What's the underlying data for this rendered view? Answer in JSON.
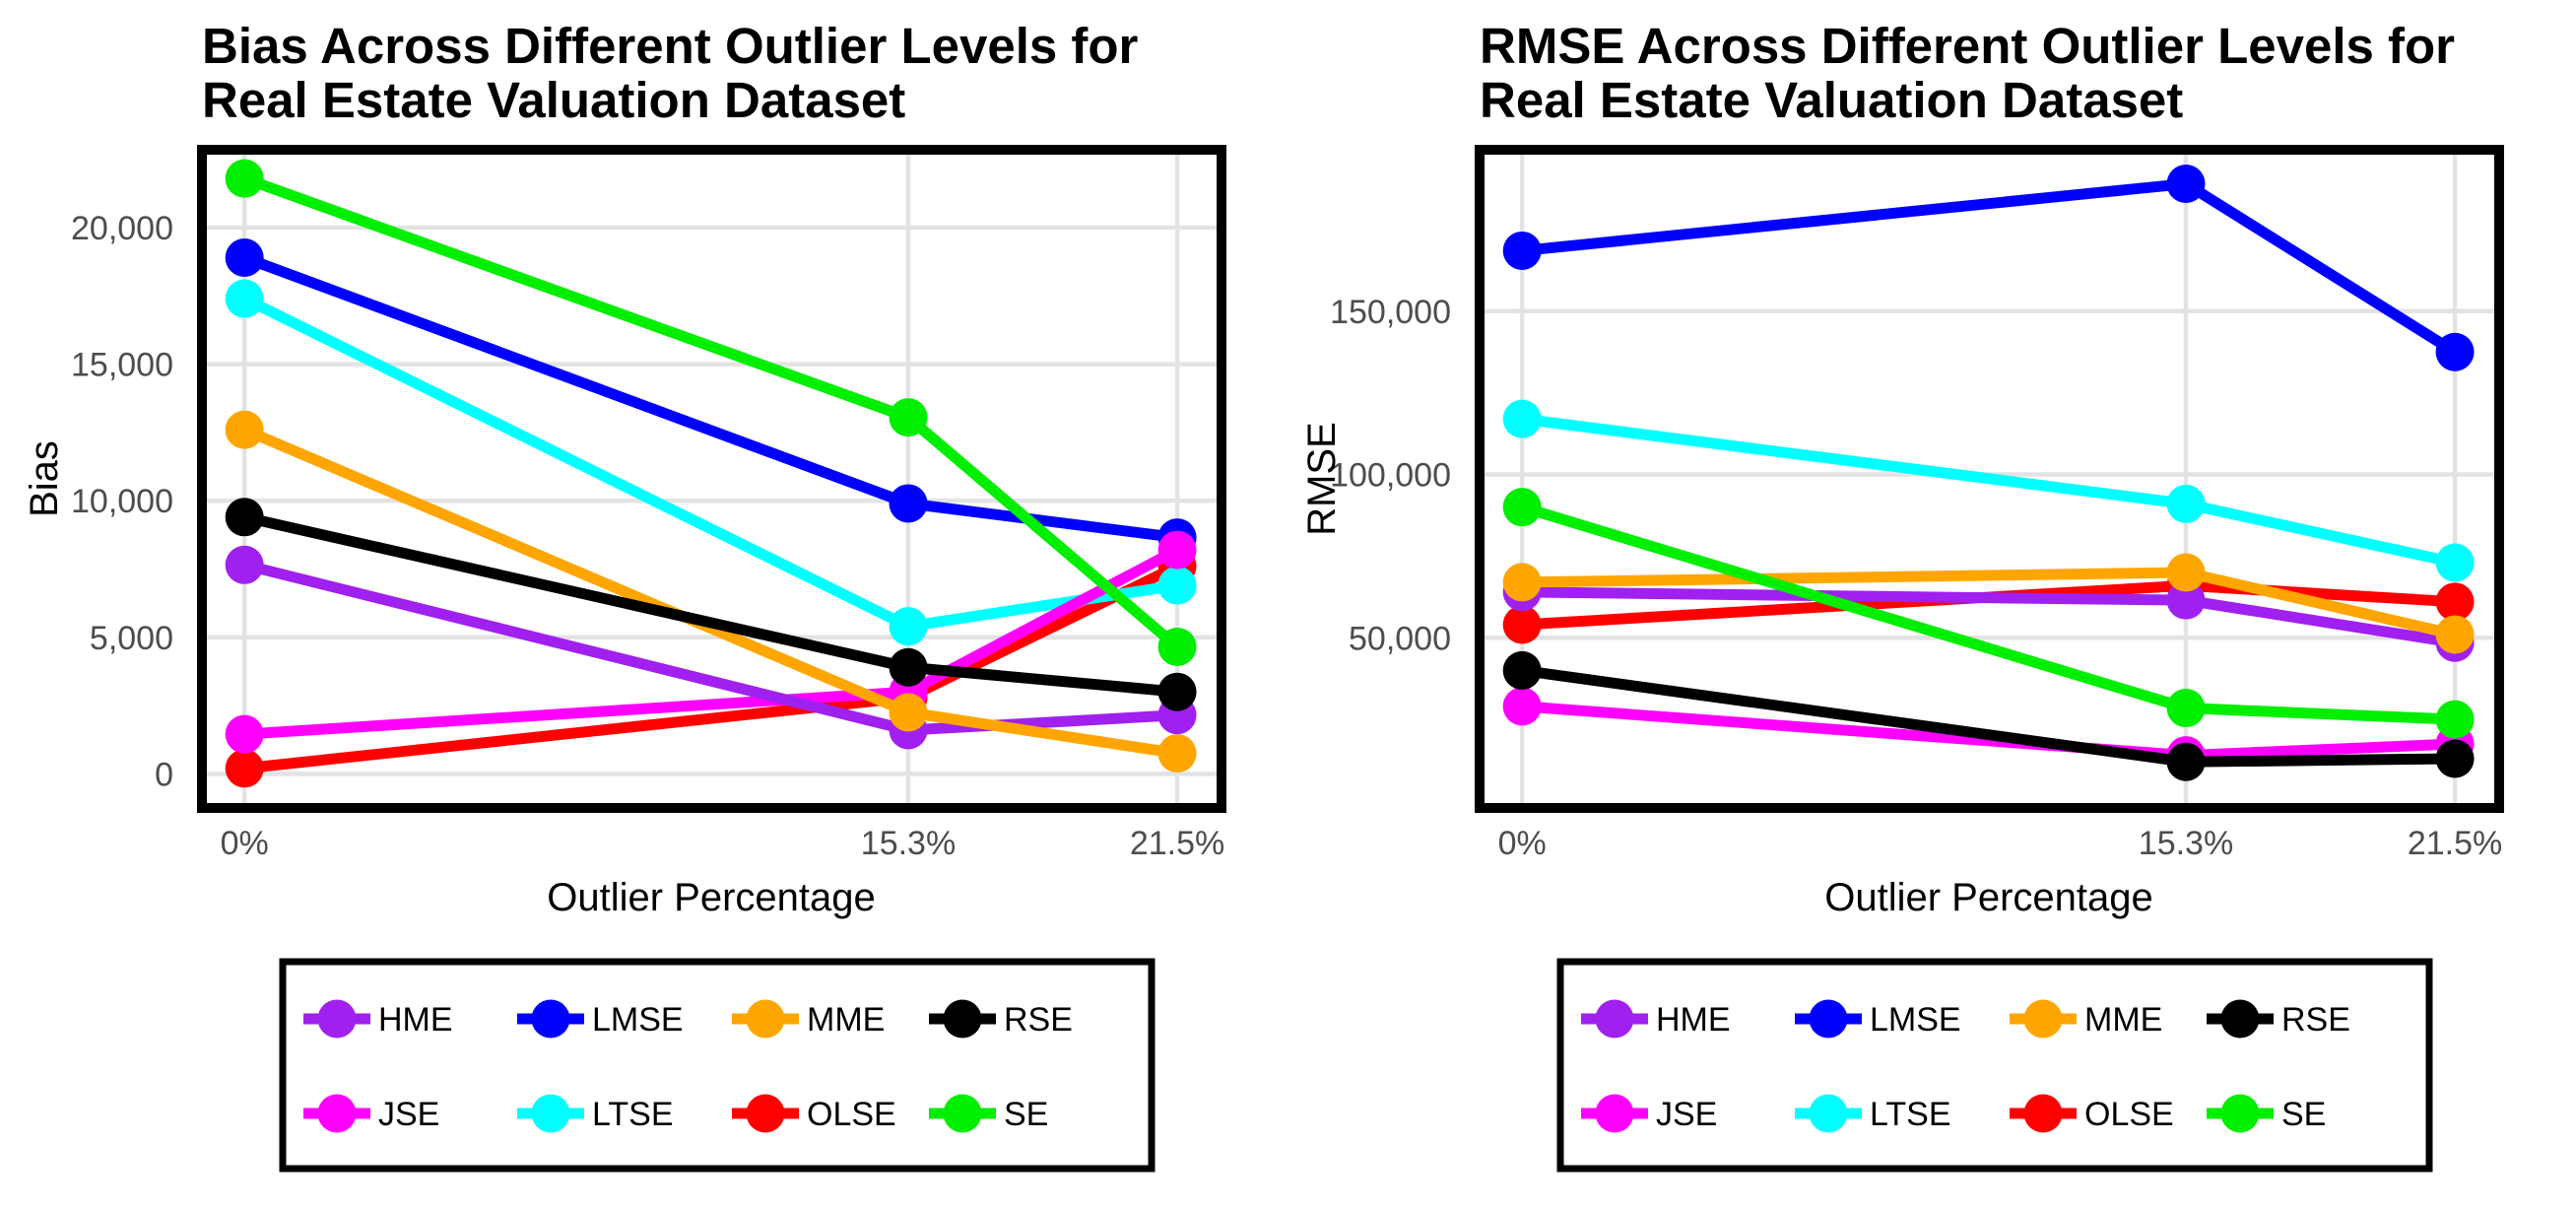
{
  "page": {
    "background": "#FFFFFF"
  },
  "legend": {
    "rows": [
      [
        "HME",
        "LMSE",
        "MME",
        "RSE"
      ],
      [
        "JSE",
        "LTSE",
        "OLSE",
        "SE"
      ]
    ],
    "colors": {
      "HME": "#A020F0",
      "LMSE": "#0000FF",
      "MME": "#FFA500",
      "RSE": "#000000",
      "JSE": "#FF00FF",
      "LTSE": "#00FFFF",
      "OLSE": "#FF0000",
      "SE": "#00EE00"
    }
  },
  "style_colors": {
    "tick_label": "#4D4D4D",
    "gridline": "#E3E3E3",
    "panel_border": "#000000",
    "title_text": "#000000"
  },
  "chart_data": [
    {
      "type": "line",
      "title_lines": [
        "Bias Across Different Outlier Levels for",
        "Real Estate Valuation Dataset"
      ],
      "xlabel": "Outlier Percentage",
      "ylabel": "Bias",
      "grid": true,
      "legend_position": "bottom",
      "x_ticks": [
        {
          "value": 0,
          "label": "0%"
        },
        {
          "value": 15.3,
          "label": "15.3%"
        },
        {
          "value": 21.5,
          "label": "21.5%"
        }
      ],
      "y_ticks": [
        {
          "value": 0,
          "label": "0"
        },
        {
          "value": 5000,
          "label": "5,000"
        },
        {
          "value": 10000,
          "label": "10,000"
        },
        {
          "value": 15000,
          "label": "15,000"
        },
        {
          "value": 20000,
          "label": "20,000"
        }
      ],
      "xlim": [
        -0.98,
        22.52
      ],
      "ylim": [
        -1250,
        22850
      ],
      "series": [
        {
          "name": "HME",
          "color": "#A020F0",
          "values": [
            7650,
            1600,
            2150
          ]
        },
        {
          "name": "LMSE",
          "color": "#0000FF",
          "values": [
            18900,
            9900,
            8650
          ]
        },
        {
          "name": "MME",
          "color": "#FFA500",
          "values": [
            12600,
            2250,
            750
          ]
        },
        {
          "name": "RSE",
          "color": "#000000",
          "values": [
            9400,
            3900,
            3000
          ]
        },
        {
          "name": "JSE",
          "color": "#FF00FF",
          "values": [
            1450,
            3000,
            8200
          ]
        },
        {
          "name": "LTSE",
          "color": "#00FFFF",
          "values": [
            17400,
            5400,
            6900
          ]
        },
        {
          "name": "OLSE",
          "color": "#FF0000",
          "values": [
            200,
            2800,
            7600
          ]
        },
        {
          "name": "SE",
          "color": "#00EE00",
          "values": [
            21800,
            13050,
            4650
          ]
        }
      ]
    },
    {
      "type": "line",
      "title_lines": [
        "RMSE Across Different Outlier Levels for",
        "Real Estate Valuation Dataset"
      ],
      "xlabel": "Outlier Percentage",
      "ylabel": "RMSE",
      "grid": true,
      "legend_position": "bottom",
      "x_ticks": [
        {
          "value": 0,
          "label": "0%"
        },
        {
          "value": 15.3,
          "label": "15.3%"
        },
        {
          "value": 21.5,
          "label": "21.5%"
        }
      ],
      "y_ticks": [
        {
          "value": 50000,
          "label": "50,000"
        },
        {
          "value": 100000,
          "label": "100,000"
        },
        {
          "value": 150000,
          "label": "150,000"
        }
      ],
      "xlim": [
        -0.98,
        22.52
      ],
      "ylim": [
        -2100,
        199400
      ],
      "series": [
        {
          "name": "HME",
          "color": "#A020F0",
          "values": [
            64000,
            61500,
            48500
          ]
        },
        {
          "name": "LMSE",
          "color": "#0000FF",
          "values": [
            168500,
            189000,
            137500
          ]
        },
        {
          "name": "MME",
          "color": "#FFA500",
          "values": [
            67000,
            70000,
            51000
          ]
        },
        {
          "name": "RSE",
          "color": "#000000",
          "values": [
            40000,
            12000,
            13000
          ]
        },
        {
          "name": "JSE",
          "color": "#FF00FF",
          "values": [
            29000,
            14000,
            17500
          ]
        },
        {
          "name": "LTSE",
          "color": "#00FFFF",
          "values": [
            117000,
            91000,
            73000
          ]
        },
        {
          "name": "OLSE",
          "color": "#FF0000",
          "values": [
            54000,
            66000,
            61000
          ]
        },
        {
          "name": "SE",
          "color": "#00EE00",
          "values": [
            90000,
            28500,
            25000
          ]
        }
      ]
    }
  ]
}
